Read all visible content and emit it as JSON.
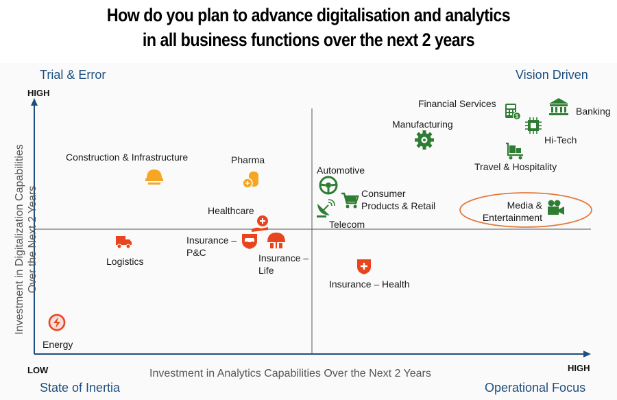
{
  "title_line1": "How do you plan to advance digitalisation and analytics",
  "title_line2": "in all business functions over the next 2 years",
  "chart_data": {
    "type": "scatter",
    "title": "How do you plan to advance digitalisation and analytics in all business functions over the next 2 years",
    "xlabel": "Investment in Analytics Capabilities Over the Next 2 Years",
    "ylabel_line1": "Investment in Digitalization Capabilities",
    "ylabel_line2": "Over the Next 2 Years",
    "x_low_label": "LOW",
    "x_high_label": "HIGH",
    "y_high_label": "HIGH",
    "quadrants": {
      "top_left": "Trial & Error",
      "top_right": "Vision Driven",
      "bottom_left": "State of Inertia",
      "bottom_right": "Operational Focus"
    },
    "colors": {
      "low_digital": "#e8451e",
      "medium": "#f5a623",
      "high": "#2e7d32",
      "quadrant_text": "#1d4e7e",
      "highlight": "#e07a3c"
    },
    "points": [
      {
        "name": "Energy",
        "icon": "lightning-icon",
        "color": "#e8451e",
        "x": 0.06,
        "y": 0.13
      },
      {
        "name": "Logistics",
        "icon": "truck-icon",
        "color": "#e8451e",
        "x": 0.16,
        "y": 0.45
      },
      {
        "name": "Construction & Infrastructure",
        "icon": "hardhat-icon",
        "color": "#f5a623",
        "x": 0.22,
        "y": 0.66
      },
      {
        "name": "Pharma",
        "icon": "pill-icon",
        "color": "#f5a623",
        "x": 0.4,
        "y": 0.62
      },
      {
        "name": "Healthcare",
        "icon": "hand-plus-icon",
        "color": "#e8451e",
        "x": 0.41,
        "y": 0.53
      },
      {
        "name": "Insurance – P&C",
        "icon": "car-shield-icon",
        "color": "#e8451e",
        "x": 0.385,
        "y": 0.46
      },
      {
        "name": "Insurance – Life",
        "icon": "umbrella-icon",
        "color": "#e8451e",
        "x": 0.44,
        "y": 0.46
      },
      {
        "name": "Insurance – Health",
        "icon": "medical-shield-icon",
        "color": "#e8451e",
        "x": 0.61,
        "y": 0.35
      },
      {
        "name": "Automotive",
        "icon": "steering-wheel-icon",
        "color": "#2e7d32",
        "x": 0.55,
        "y": 0.64
      },
      {
        "name": "Consumer Products & Retail",
        "icon": "cart-icon",
        "color": "#2e7d32",
        "x": 0.58,
        "y": 0.61
      },
      {
        "name": "Telecom",
        "icon": "satellite-dish-icon",
        "color": "#2e7d32",
        "x": 0.55,
        "y": 0.57
      },
      {
        "name": "Manufacturing",
        "icon": "gear-icon",
        "color": "#2e7d32",
        "x": 0.73,
        "y": 0.79
      },
      {
        "name": "Financial Services",
        "icon": "calculator-icon",
        "color": "#2e7d32",
        "x": 0.87,
        "y": 0.89
      },
      {
        "name": "Banking",
        "icon": "bank-icon",
        "color": "#2e7d32",
        "x": 0.95,
        "y": 0.9
      },
      {
        "name": "Hi-Tech",
        "icon": "chip-icon",
        "color": "#2e7d32",
        "x": 0.9,
        "y": 0.85
      },
      {
        "name": "Travel & Hospitality",
        "icon": "luggage-cart-icon",
        "color": "#2e7d32",
        "x": 0.86,
        "y": 0.75
      },
      {
        "name": "Media & Entertainment",
        "icon": "video-camera-icon",
        "color": "#2e7d32",
        "x": 0.94,
        "y": 0.58
      }
    ],
    "labels": {
      "energy": "Energy",
      "logistics": "Logistics",
      "construction": "Construction & Infrastructure",
      "pharma": "Pharma",
      "healthcare": "Healthcare",
      "ins_pc_1": "Insurance –",
      "ins_pc_2": "P&C",
      "ins_life_1": "Insurance –",
      "ins_life_2": "Life",
      "ins_health": "Insurance – Health",
      "automotive": "Automotive",
      "consumer_1": "Consumer",
      "consumer_2": "Products & Retail",
      "telecom": "Telecom",
      "manufacturing": "Manufacturing",
      "financial": "Financial Services",
      "banking": "Banking",
      "hitech": "Hi-Tech",
      "travel": "Travel & Hospitality",
      "media_1": "Media &",
      "media_2": "Entertainment"
    },
    "xlim": [
      0,
      1
    ],
    "ylim": [
      0,
      1
    ],
    "grid": false,
    "highlighted": "Media & Entertainment"
  }
}
